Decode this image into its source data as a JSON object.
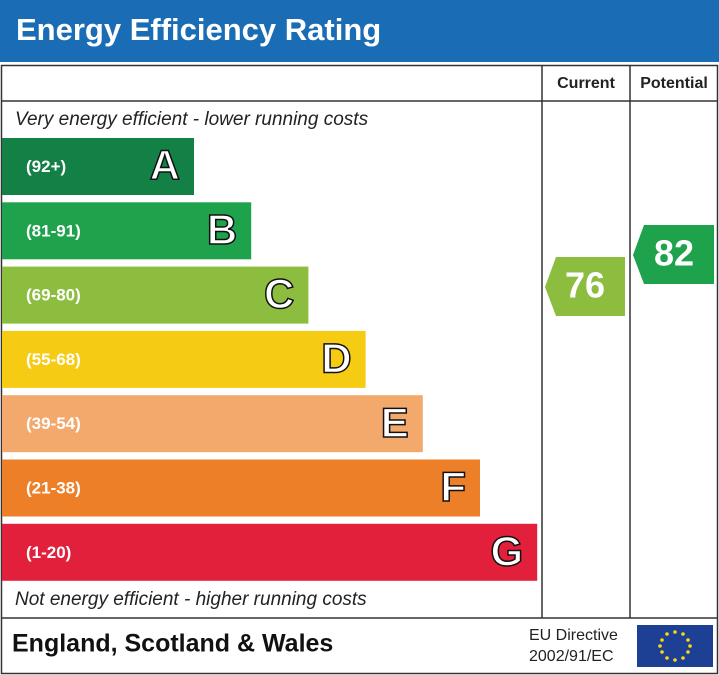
{
  "title": "Energy Efficiency Rating",
  "headers": {
    "current": "Current",
    "potential": "Potential"
  },
  "top_note": "Very energy efficient - lower running costs",
  "bottom_note": "Not energy efficient - higher running costs",
  "bands": [
    {
      "range": "(92+)",
      "letter": "A",
      "color": "#138046"
    },
    {
      "range": "(81-91)",
      "letter": "B",
      "color": "#1ea24c"
    },
    {
      "range": "(69-80)",
      "letter": "C",
      "color": "#8cbd3f"
    },
    {
      "range": "(55-68)",
      "letter": "D",
      "color": "#f6cb14"
    },
    {
      "range": "(39-54)",
      "letter": "E",
      "color": "#f2a96b"
    },
    {
      "range": "(21-38)",
      "letter": "F",
      "color": "#ec7f28"
    },
    {
      "range": "(1-20)",
      "letter": "G",
      "color": "#e2203c"
    }
  ],
  "current": {
    "value": 76,
    "color": "#8cbd3f"
  },
  "potential": {
    "value": 82,
    "color": "#1ea24c"
  },
  "footer": {
    "region": "England, Scotland & Wales",
    "directive_line1": "EU Directive",
    "directive_line2": "2002/91/EC"
  }
}
